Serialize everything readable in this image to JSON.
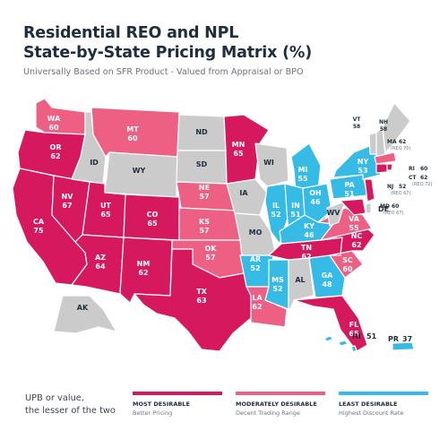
{
  "title_line1": "Residential REO and NPL",
  "title_line2": "State-by-State Pricing Matrix (%)",
  "subtitle": "Universally Based on SFR Product - Valued from Appraisal or BPO",
  "colors": {
    "most_desirable": "#d6195f",
    "moderately_desirable": "#ee5f84",
    "least_desirable": "#35bbe6",
    "no_data": "#cbcbcb",
    "label_dark": "#1f2d3d",
    "label_light": "#ffffff"
  },
  "states": {
    "WA": {
      "label": "WA",
      "value": "60",
      "tier": "moderate"
    },
    "OR": {
      "label": "OR",
      "value": "62",
      "tier": "most"
    },
    "CA": {
      "label": "CA",
      "value": "75",
      "tier": "most"
    },
    "NV": {
      "label": "NV",
      "value": "67",
      "tier": "most"
    },
    "ID": {
      "label": "ID",
      "value": "",
      "tier": "none"
    },
    "MT": {
      "label": "MT",
      "value": "60",
      "tier": "moderate"
    },
    "WY": {
      "label": "WY",
      "value": "",
      "tier": "none"
    },
    "UT": {
      "label": "UT",
      "value": "65",
      "tier": "most"
    },
    "AZ": {
      "label": "AZ",
      "value": "64",
      "tier": "most"
    },
    "CO": {
      "label": "CO",
      "value": "65",
      "tier": "most"
    },
    "NM": {
      "label": "NM",
      "value": "62",
      "tier": "most"
    },
    "ND": {
      "label": "ND",
      "value": "",
      "tier": "none"
    },
    "SD": {
      "label": "SD",
      "value": "",
      "tier": "none"
    },
    "NE": {
      "label": "NE",
      "value": "57",
      "tier": "moderate"
    },
    "KS": {
      "label": "KS",
      "value": "57",
      "tier": "moderate"
    },
    "OK": {
      "label": "OK",
      "value": "57",
      "tier": "moderate"
    },
    "TX": {
      "label": "TX",
      "value": "63",
      "tier": "most"
    },
    "MN": {
      "label": "MN",
      "value": "65",
      "tier": "most"
    },
    "IA": {
      "label": "IA",
      "value": "",
      "tier": "none"
    },
    "MO": {
      "label": "MO",
      "value": "",
      "tier": "none"
    },
    "AR": {
      "label": "AR",
      "value": "52",
      "tier": "least"
    },
    "LA": {
      "label": "LA",
      "value": "62",
      "tier": "moderate"
    },
    "WI": {
      "label": "WI",
      "value": "",
      "tier": "none"
    },
    "IL": {
      "label": "IL",
      "value": "52",
      "tier": "least"
    },
    "MS": {
      "label": "MS",
      "value": "52",
      "tier": "least"
    },
    "MI": {
      "label": "MI",
      "value": "55",
      "tier": "least"
    },
    "IN": {
      "label": "IN",
      "value": "51",
      "tier": "least"
    },
    "KY": {
      "label": "KY",
      "value": "46",
      "tier": "least"
    },
    "TN": {
      "label": "TN",
      "value": "62",
      "tier": "most"
    },
    "AL": {
      "label": "AL",
      "value": "",
      "tier": "none"
    },
    "OH": {
      "label": "OH",
      "value": "46",
      "tier": "least"
    },
    "GA": {
      "label": "GA",
      "value": "48",
      "tier": "least"
    },
    "FL": {
      "label": "FL",
      "value": "65",
      "tier": "most"
    },
    "SC": {
      "label": "SC",
      "value": "60",
      "tier": "moderate"
    },
    "NC": {
      "label": "NC",
      "value": "62",
      "tier": "most"
    },
    "VA": {
      "label": "VA",
      "value": "55",
      "tier": "moderate"
    },
    "WV": {
      "label": "WV",
      "value": "",
      "tier": "none"
    },
    "PA": {
      "label": "PA",
      "value": "51",
      "tier": "least"
    },
    "NY": {
      "label": "NY",
      "value": "53",
      "tier": "least"
    },
    "VT": {
      "label": "VT",
      "value": "58",
      "tier": "none"
    },
    "NH": {
      "label": "NH",
      "value": "58",
      "tier": "none"
    },
    "ME": {
      "label": "ME",
      "value": "",
      "tier": "none"
    },
    "MA": {
      "label": "MA",
      "value": "62",
      "tier": "moderate",
      "note": "(REO 70)"
    },
    "RI": {
      "label": "RI",
      "value": "60",
      "tier": "most"
    },
    "CT": {
      "label": "CT",
      "value": "62",
      "tier": "most",
      "note": "(REO 72)"
    },
    "NJ": {
      "label": "NJ",
      "value": "52",
      "tier": "most",
      "note": "(REO 67)"
    },
    "DE": {
      "label": "DE",
      "value": "",
      "tier": "none"
    },
    "MD": {
      "label": "MD",
      "value": "60",
      "tier": "most",
      "note": "(REO 67)"
    },
    "AK": {
      "label": "AK",
      "value": "",
      "tier": "none"
    },
    "HI": {
      "label": "HI",
      "value": "51",
      "tier": "least"
    },
    "PR": {
      "label": "PR",
      "value": "37",
      "tier": "least"
    }
  },
  "legend": {
    "intro_line1": "UPB or value,",
    "intro_line2": "the lesser of the two",
    "items": [
      {
        "tier": "most",
        "heading": "MOST DESIRABLE",
        "desc": "Better Pricing"
      },
      {
        "tier": "moderate",
        "heading": "MODERATELY DESIRABLE",
        "desc": "Decent Trading Range"
      },
      {
        "tier": "least",
        "heading": "LEAST DESIRABLE",
        "desc": "Highest Discount Rate"
      }
    ]
  }
}
